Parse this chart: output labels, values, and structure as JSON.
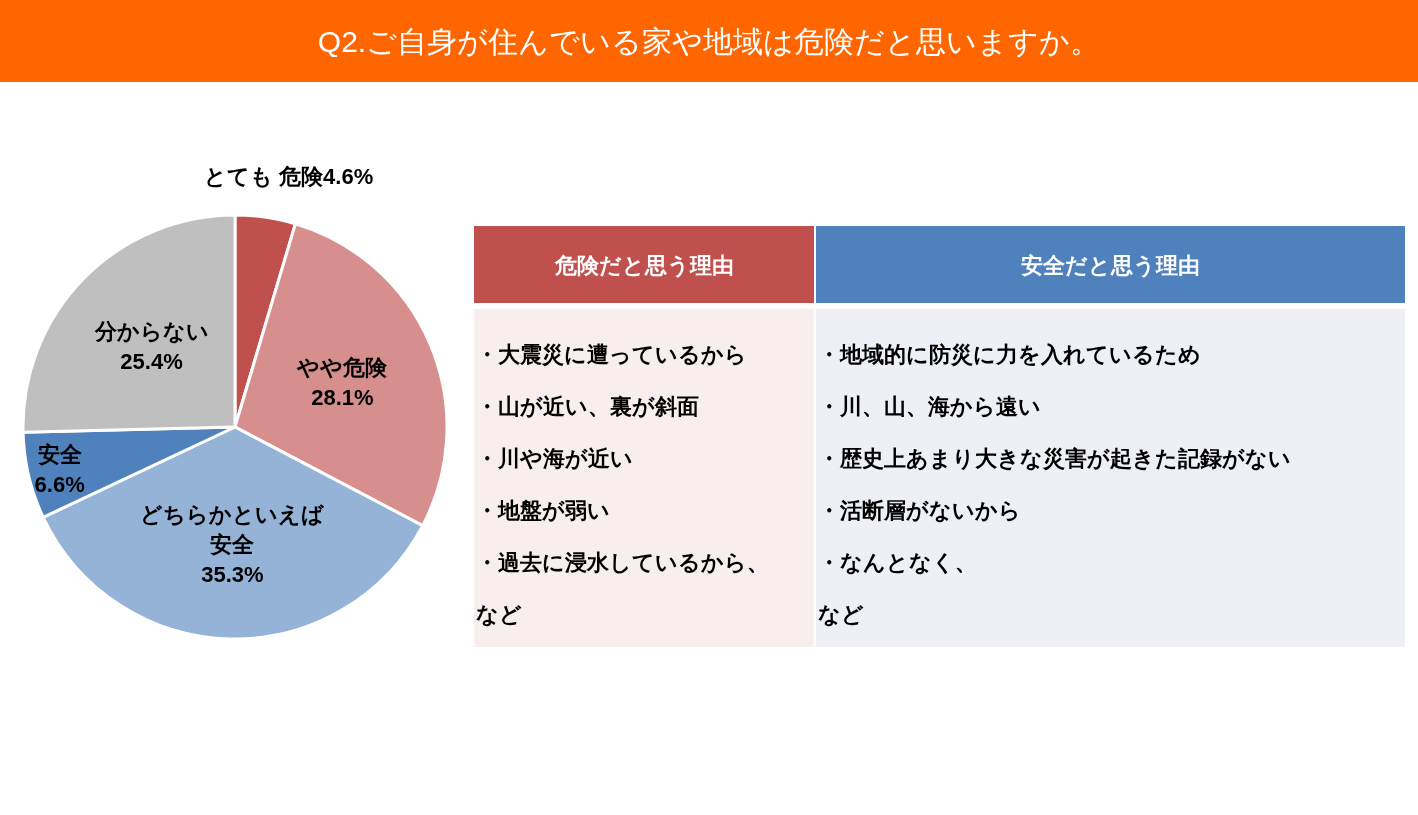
{
  "chart_data": [
    {
      "type": "pie",
      "title": "Q2.ご自身が住んでいる家や地域は危険だと思いますか。",
      "categories": [
        "とても 危険",
        "やや危険",
        "どちらかといえば安全",
        "安全",
        "分からない"
      ],
      "values": [
        4.6,
        28.1,
        35.3,
        6.6,
        25.4
      ],
      "value_labels": [
        "4.6%",
        "28.1%",
        "35.3%",
        "6.6%",
        "25.4%"
      ],
      "colors": [
        "#c0504d",
        "#d78f8d",
        "#95b3d7",
        "#4f81bd",
        "#bfbfbf"
      ]
    },
    {
      "type": "other",
      "title": "危険だと思う理由",
      "annotations": [
        "・大震災に遭っているから",
        "・山が近い、裏が斜面",
        "・川や海が近い",
        "・地盤が弱い",
        "・過去に浸水しているから、",
        "など"
      ]
    },
    {
      "type": "other",
      "title": "安全だと思う理由",
      "annotations": [
        "・地域的に防災に力を入れているため",
        "・川、山、海から遠い",
        "・歴史上あまり大きな災害が起きた記録がない",
        "・活断層がないから",
        "・なんとなく、",
        "など"
      ]
    }
  ]
}
